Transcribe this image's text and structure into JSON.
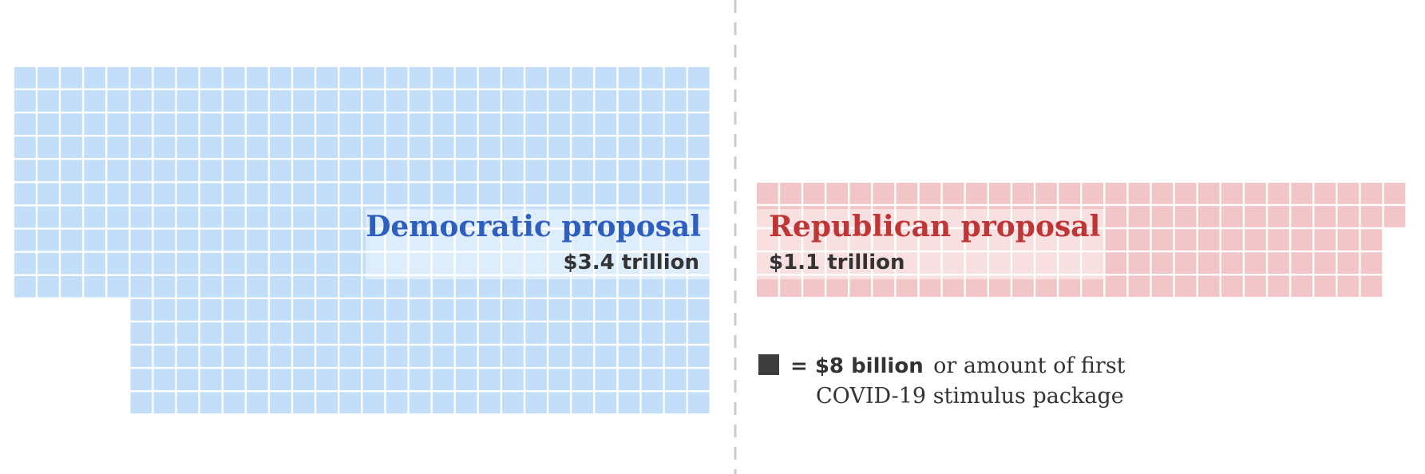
{
  "chart_data": {
    "type": "waffle",
    "unit_value_billion": 8,
    "series": [
      {
        "name": "Democratic proposal",
        "amount_label": "$3.4 trillion",
        "value_billion": 3400,
        "squares": 425,
        "color": "#c2def9",
        "label_color": "#2e5fbf"
      },
      {
        "name": "Republican proposal",
        "amount_label": "$1.1 trillion",
        "value_billion": 1100,
        "squares": 137,
        "color": "#f2c6c8",
        "label_color": "#c03535"
      }
    ],
    "legend": {
      "swatch_color": "#3d3d3d",
      "bold": "= $8 billion",
      "line1": "or amount of first",
      "line2": "COVID-19 stimulus package"
    },
    "divider": "dashed"
  }
}
